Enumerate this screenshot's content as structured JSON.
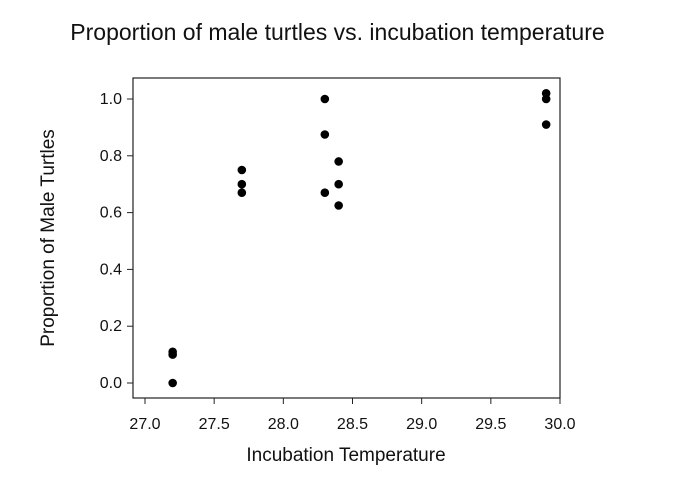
{
  "chart_data": {
    "type": "scatter",
    "title": "Proportion of male turtles vs. incubation temperature",
    "xlabel": "Incubation Temperature",
    "ylabel": "Proportion of Male Turtles",
    "xlim": [
      27.0,
      30.0
    ],
    "ylim": [
      0.0,
      1.0
    ],
    "x_ticks": [
      "27.0",
      "27.5",
      "28.0",
      "28.5",
      "29.0",
      "29.5",
      "30.0"
    ],
    "y_ticks": [
      "0.0",
      "0.2",
      "0.4",
      "0.6",
      "0.8",
      "1.0"
    ],
    "grid": false,
    "legend": "none",
    "marker_color": "#000000",
    "points": [
      {
        "x": 27.2,
        "y": 0.0
      },
      {
        "x": 27.2,
        "y": 0.1
      },
      {
        "x": 27.2,
        "y": 0.11
      },
      {
        "x": 27.7,
        "y": 0.67
      },
      {
        "x": 27.7,
        "y": 0.7
      },
      {
        "x": 27.7,
        "y": 0.75
      },
      {
        "x": 28.3,
        "y": 0.67
      },
      {
        "x": 28.3,
        "y": 0.875
      },
      {
        "x": 28.3,
        "y": 1.0
      },
      {
        "x": 28.4,
        "y": 0.625
      },
      {
        "x": 28.4,
        "y": 0.7
      },
      {
        "x": 28.4,
        "y": 0.78
      },
      {
        "x": 29.9,
        "y": 0.91
      },
      {
        "x": 29.9,
        "y": 1.0
      },
      {
        "x": 29.9,
        "y": 1.02
      }
    ]
  }
}
